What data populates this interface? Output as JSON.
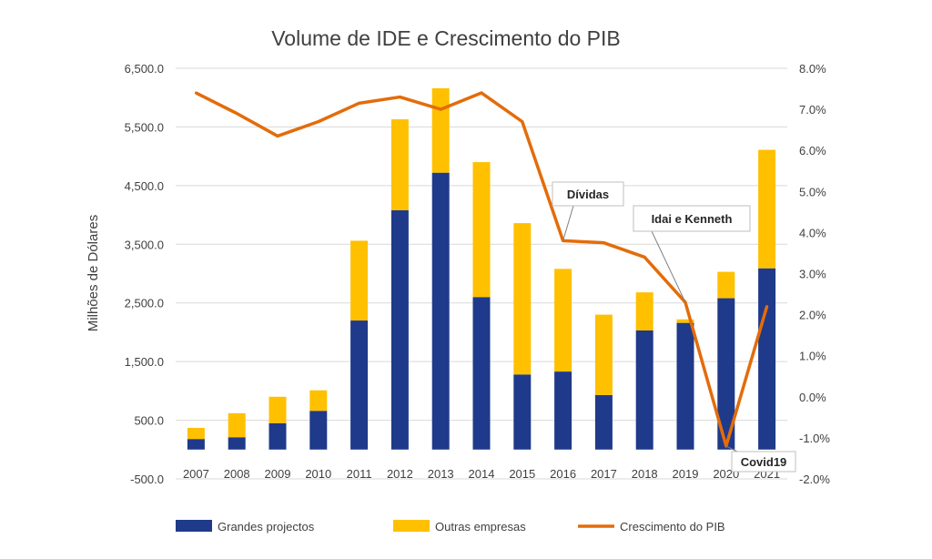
{
  "chart_data": {
    "type": "bar",
    "title": "Volume de IDE e Crescimento do PIB",
    "ylabel": "Milhões de Dólares",
    "ylabel_right": "",
    "categories": [
      "2007",
      "2008",
      "2009",
      "2010",
      "2011",
      "2012",
      "2013",
      "2014",
      "2015",
      "2016",
      "2017",
      "2018",
      "2019",
      "2020",
      "2021"
    ],
    "stacked": true,
    "series": [
      {
        "name": "Grandes projectos",
        "type": "bar",
        "axis": "left",
        "color": "#1f3a8a",
        "values": [
          180,
          210,
          450,
          660,
          2200,
          4080,
          4720,
          2600,
          1280,
          1330,
          930,
          2030,
          2160,
          2580,
          3090
        ]
      },
      {
        "name": "Outras empresas",
        "type": "bar",
        "axis": "left",
        "color": "#ffc000",
        "values": [
          190,
          410,
          450,
          350,
          1360,
          1550,
          1440,
          2300,
          2580,
          1750,
          1370,
          650,
          60,
          450,
          2020
        ]
      },
      {
        "name": "Crescimento do PIB",
        "type": "line",
        "axis": "right",
        "color": "#e36c0a",
        "values": [
          7.4,
          6.9,
          6.35,
          6.7,
          7.15,
          7.3,
          7.0,
          7.4,
          6.7,
          3.8,
          3.75,
          3.4,
          2.3,
          -1.2,
          2.2
        ]
      }
    ],
    "ylim": [
      -500,
      6500
    ],
    "yticks": [
      "-500.0",
      "500.0",
      "1,500.0",
      "2,500.0",
      "3,500.0",
      "4,500.0",
      "5,500.0",
      "6,500.0"
    ],
    "ytick_values": [
      -500,
      500,
      1500,
      2500,
      3500,
      4500,
      5500,
      6500
    ],
    "y2lim": [
      -2.0,
      8.0
    ],
    "y2ticks": [
      "-2.0%",
      "-1.0%",
      "0.0%",
      "1.0%",
      "2.0%",
      "3.0%",
      "4.0%",
      "5.0%",
      "6.0%",
      "7.0%",
      "8.0%"
    ],
    "y2tick_values": [
      -2,
      -1,
      0,
      1,
      2,
      3,
      4,
      5,
      6,
      7,
      8
    ],
    "grid": true,
    "legend": "bottom",
    "annotations": [
      {
        "text": "Dívidas",
        "category": "2016",
        "target_value": 3.8
      },
      {
        "text": "Idai e Kenneth",
        "category": "2019",
        "target_value": 2.3
      },
      {
        "text": "Covid19",
        "category": "2020",
        "target_value": -1.2
      }
    ]
  }
}
